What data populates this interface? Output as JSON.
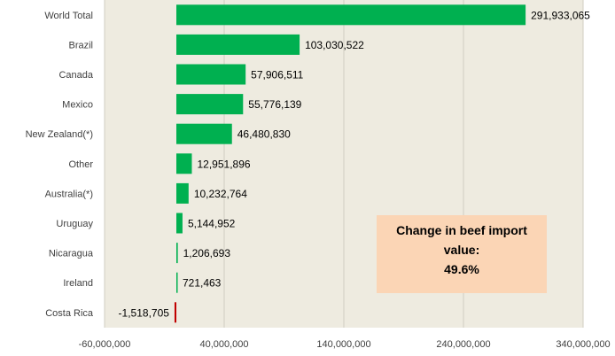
{
  "chart_data": {
    "type": "bar",
    "orientation": "horizontal",
    "categories": [
      "World Total",
      "Brazil",
      "Canada",
      "Mexico",
      "New Zealand(*)",
      "Other",
      "Australia(*)",
      "Uruguay",
      "Nicaragua",
      "Ireland",
      "Costa Rica"
    ],
    "values": [
      291933065,
      103030522,
      57906511,
      55776139,
      46480830,
      12951896,
      10232764,
      5144952,
      1206693,
      721463,
      -1518705
    ],
    "data_labels": [
      "291,933,065",
      "103,030,522",
      "57,906,511",
      "55,776,139",
      "46,480,830",
      "12,951,896",
      "10,232,764",
      "5,144,952",
      "1,206,693",
      "721,463",
      "-1,518,705"
    ],
    "xlim": [
      -60000000,
      340000000
    ],
    "xticks": [
      -60000000,
      40000000,
      140000000,
      240000000,
      340000000
    ],
    "xtick_labels": [
      "-60,000,000",
      "40,000,000",
      "140,000,000",
      "240,000,000",
      "340,000,000"
    ],
    "grid": true,
    "colors": {
      "positive": "#00b050",
      "negative": "#c00000",
      "plot_background": "#eeebe0",
      "grid": "#d0cdc2"
    },
    "annotation": {
      "line1": "Change in beef import",
      "line2": "value:",
      "line3": "49.6%",
      "background": "#fbd5b5"
    }
  }
}
